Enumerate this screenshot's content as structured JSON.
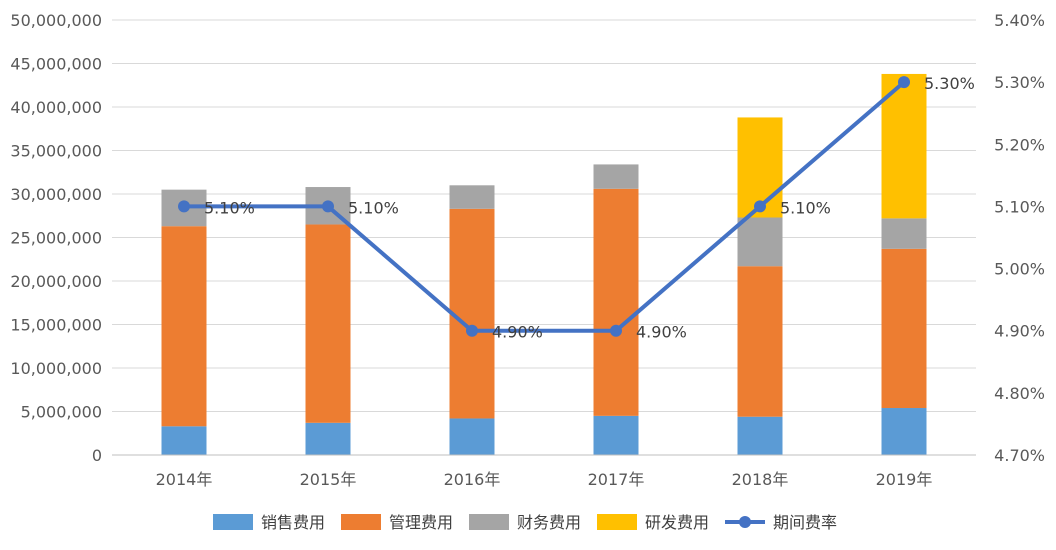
{
  "chart_data": {
    "type": "bar",
    "stacked": true,
    "categories": [
      "2014年",
      "2015年",
      "2016年",
      "2017年",
      "2018年",
      "2019年"
    ],
    "series": [
      {
        "name": "销售费用",
        "type": "bar",
        "axis": "left",
        "color": "#5b9bd5",
        "values": [
          3300000,
          3700000,
          4200000,
          4500000,
          4400000,
          5400000
        ]
      },
      {
        "name": "管理费用",
        "type": "bar",
        "axis": "left",
        "color": "#ed7d31",
        "values": [
          23000000,
          22800000,
          24100000,
          26100000,
          17300000,
          18300000
        ]
      },
      {
        "name": "财务费用",
        "type": "bar",
        "axis": "left",
        "color": "#a5a5a5",
        "values": [
          4200000,
          4300000,
          2700000,
          2800000,
          5600000,
          3500000
        ]
      },
      {
        "name": "研发费用",
        "type": "bar",
        "axis": "left",
        "color": "#ffc000",
        "values": [
          0,
          0,
          0,
          0,
          11500000,
          16600000
        ]
      },
      {
        "name": "期间费率",
        "type": "line",
        "axis": "right",
        "color": "#4472c4",
        "values": [
          5.1,
          5.1,
          4.9,
          4.9,
          5.1,
          5.3
        ],
        "labels": [
          "5.10%",
          "5.10%",
          "4.90%",
          "4.90%",
          "5.10%",
          "5.30%"
        ]
      }
    ],
    "left_axis": {
      "ylim": [
        0,
        50000000
      ],
      "ticks": [
        0,
        5000000,
        10000000,
        15000000,
        20000000,
        25000000,
        30000000,
        35000000,
        40000000,
        45000000,
        50000000
      ],
      "tick_labels": [
        "0",
        "5,000,000",
        "10,000,000",
        "15,000,000",
        "20,000,000",
        "25,000,000",
        "30,000,000",
        "35,000,000",
        "40,000,000",
        "45,000,000",
        "50,000,000"
      ]
    },
    "right_axis": {
      "ylim": [
        4.7,
        5.4
      ],
      "ticks": [
        4.7,
        4.8,
        4.9,
        5.0,
        5.1,
        5.2,
        5.3,
        5.4
      ],
      "tick_labels": [
        "4.70%",
        "4.80%",
        "4.90%",
        "5.00%",
        "5.10%",
        "5.20%",
        "5.30%",
        "5.40%"
      ]
    },
    "title": "",
    "xlabel": "",
    "ylabel": "",
    "grid": true,
    "legend_position": "bottom",
    "colors": {
      "grid": "#d9d9d9",
      "axis": "#bfbfbf",
      "text": "#595959"
    }
  }
}
